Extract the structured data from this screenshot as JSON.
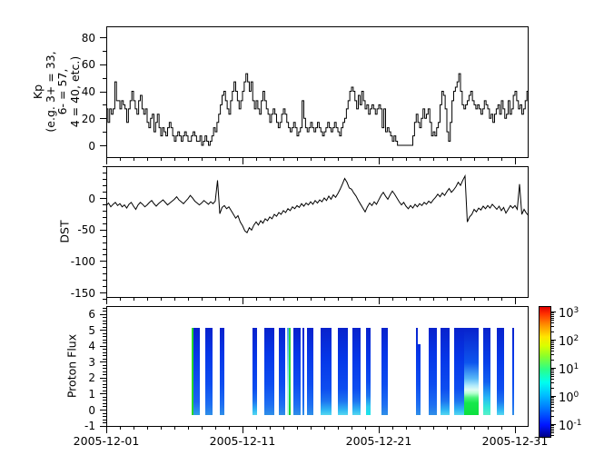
{
  "xaxis": {
    "tick_labels": [
      "2005-12-01",
      "2005-12-11",
      "2005-12-21",
      "2005-12-31"
    ],
    "tick_days": [
      0,
      10,
      20,
      30
    ],
    "minor_tick_every_days": 1,
    "days_total": 31
  },
  "chart_data": [
    {
      "type": "line",
      "name": "kp-index",
      "step": true,
      "ylabel_lines": [
        "Kp",
        "(e.g. 3+ = 33,",
        "6- = 57,",
        "4 = 40, etc.)"
      ],
      "yticks": [
        0,
        20,
        40,
        60,
        80
      ],
      "minor_ytick_step": 10,
      "ylim": [
        -9,
        86
      ],
      "samples_per_day": 8,
      "values": [
        27,
        17,
        27,
        23,
        27,
        47,
        33,
        33,
        27,
        33,
        30,
        27,
        17,
        27,
        33,
        40,
        33,
        27,
        23,
        33,
        37,
        27,
        23,
        27,
        17,
        13,
        20,
        23,
        10,
        17,
        23,
        13,
        7,
        13,
        10,
        7,
        13,
        17,
        13,
        7,
        3,
        7,
        10,
        7,
        3,
        7,
        10,
        7,
        3,
        3,
        7,
        10,
        7,
        3,
        3,
        7,
        0,
        3,
        7,
        3,
        0,
        3,
        7,
        13,
        10,
        17,
        23,
        30,
        37,
        40,
        33,
        27,
        23,
        33,
        40,
        47,
        40,
        33,
        27,
        33,
        40,
        47,
        53,
        47,
        40,
        47,
        33,
        27,
        33,
        27,
        23,
        33,
        40,
        33,
        27,
        23,
        17,
        23,
        27,
        23,
        17,
        13,
        17,
        23,
        27,
        23,
        17,
        13,
        10,
        13,
        17,
        13,
        7,
        10,
        13,
        33,
        20,
        13,
        10,
        13,
        17,
        13,
        10,
        13,
        17,
        13,
        10,
        7,
        10,
        13,
        17,
        13,
        10,
        13,
        17,
        13,
        10,
        7,
        13,
        17,
        20,
        27,
        33,
        40,
        43,
        40,
        33,
        27,
        37,
        30,
        40,
        33,
        27,
        30,
        23,
        27,
        30,
        27,
        23,
        27,
        30,
        27,
        13,
        27,
        10,
        13,
        10,
        7,
        3,
        7,
        3,
        0,
        0,
        0,
        0,
        0,
        0,
        0,
        0,
        0,
        7,
        17,
        23,
        17,
        13,
        20,
        27,
        20,
        23,
        27,
        17,
        7,
        10,
        7,
        13,
        17,
        30,
        40,
        37,
        27,
        10,
        3,
        17,
        33,
        40,
        43,
        47,
        53,
        40,
        30,
        27,
        30,
        33,
        37,
        40,
        33,
        30,
        27,
        30,
        27,
        23,
        27,
        33,
        30,
        27,
        20,
        23,
        17,
        23,
        27,
        30,
        23,
        33,
        27,
        20,
        23,
        33,
        23,
        27,
        37,
        40,
        33,
        27,
        30,
        23,
        27,
        33,
        40
      ]
    },
    {
      "type": "line",
      "name": "dst-index",
      "ylabel": "DST",
      "yticks": [
        0,
        -50,
        -100,
        -150
      ],
      "minor_ytick_step": 10,
      "ylim": [
        -160,
        50
      ],
      "samples_per_day": 6,
      "values": [
        -12,
        -8,
        -14,
        -10,
        -7,
        -12,
        -9,
        -14,
        -11,
        -16,
        -10,
        -7,
        -13,
        -18,
        -11,
        -7,
        -10,
        -14,
        -11,
        -7,
        -4,
        -9,
        -13,
        -9,
        -6,
        -3,
        -7,
        -11,
        -8,
        -5,
        -2,
        2,
        -3,
        -6,
        -9,
        -5,
        -1,
        4,
        0,
        -5,
        -8,
        -11,
        -8,
        -4,
        -7,
        -10,
        -6,
        -9,
        -5,
        28,
        -25,
        -15,
        -12,
        -17,
        -14,
        -20,
        -26,
        -32,
        -28,
        -38,
        -44,
        -52,
        -55,
        -47,
        -51,
        -43,
        -38,
        -43,
        -36,
        -40,
        -33,
        -36,
        -30,
        -33,
        -26,
        -29,
        -23,
        -26,
        -20,
        -23,
        -17,
        -20,
        -14,
        -17,
        -12,
        -15,
        -9,
        -13,
        -8,
        -11,
        -6,
        -10,
        -4,
        -8,
        -3,
        -6,
        0,
        -4,
        3,
        -2,
        5,
        1,
        7,
        14,
        22,
        31,
        25,
        16,
        14,
        8,
        3,
        -4,
        -10,
        -16,
        -22,
        -14,
        -8,
        -12,
        -6,
        -10,
        -3,
        4,
        9,
        3,
        -2,
        5,
        11,
        6,
        0,
        -6,
        -11,
        -7,
        -13,
        -17,
        -12,
        -16,
        -10,
        -14,
        -9,
        -12,
        -7,
        -10,
        -5,
        -8,
        -3,
        1,
        6,
        2,
        8,
        4,
        10,
        15,
        9,
        13,
        18,
        25,
        20,
        28,
        35,
        -38,
        -30,
        -26,
        -18,
        -22,
        -16,
        -19,
        -13,
        -17,
        -12,
        -16,
        -10,
        -14,
        -18,
        -13,
        -20,
        -15,
        -24,
        -18,
        -12,
        -16,
        -12,
        -18,
        22,
        -26,
        -18,
        -24,
        -28
      ]
    },
    {
      "type": "heatmap",
      "name": "proton-flux",
      "ylabel": "Proton Flux",
      "yticks": [
        6,
        5,
        4,
        3,
        2,
        1,
        0,
        -1
      ],
      "ylim": [
        -1.1,
        6.45
      ],
      "band": [
        0,
        5
      ],
      "colorbar": {
        "scale": "log",
        "colormap": "jet",
        "ticks": [
          {
            "base": "10",
            "exp": "3"
          },
          {
            "base": "10",
            "exp": "2"
          },
          {
            "base": "10",
            "exp": "1"
          },
          {
            "base": "10",
            "exp": "0"
          },
          {
            "base": "10",
            "exp": "-1"
          }
        ]
      },
      "stripes": [
        {
          "day_start": 6.27,
          "day_end": 6.87,
          "style": "green_edge"
        },
        {
          "day_start": 7.27,
          "day_end": 7.8,
          "style": "blue"
        },
        {
          "day_start": 8.33,
          "day_end": 8.67,
          "style": "blue"
        },
        {
          "day_start": 10.73,
          "day_end": 11.07,
          "style": "blue_cyan"
        },
        {
          "day_start": 11.6,
          "day_end": 12.33,
          "style": "blue"
        },
        {
          "day_start": 12.67,
          "day_end": 13.13,
          "style": "blue"
        },
        {
          "day_start": 13.27,
          "day_end": 13.4,
          "style": "cyan_light"
        },
        {
          "day_start": 13.4,
          "day_end": 13.53,
          "style": "green_full"
        },
        {
          "day_start": 13.73,
          "day_end": 14.27,
          "style": "blue"
        },
        {
          "day_start": 14.4,
          "day_end": 14.53,
          "style": "blue"
        },
        {
          "day_start": 14.73,
          "day_end": 15.2,
          "style": "blue"
        },
        {
          "day_start": 15.73,
          "day_end": 16.53,
          "style": "blue_cyan"
        },
        {
          "day_start": 17.0,
          "day_end": 17.73,
          "style": "blue_cyan"
        },
        {
          "day_start": 18.07,
          "day_end": 18.67,
          "style": "blue_cyan"
        },
        {
          "day_start": 19.07,
          "day_end": 19.4,
          "style": "blue_cyan_strong"
        },
        {
          "day_start": 20.2,
          "day_end": 20.67,
          "style": "blue"
        },
        {
          "day_start": 22.73,
          "day_end": 23.07,
          "style": "blue_notch"
        },
        {
          "day_start": 23.67,
          "day_end": 24.27,
          "style": "blue"
        },
        {
          "day_start": 24.53,
          "day_end": 25.2,
          "style": "blue_cyan"
        },
        {
          "day_start": 25.53,
          "day_end": 26.27,
          "style": "blue_cyan"
        },
        {
          "day_start": 26.27,
          "day_end": 27.33,
          "style": "green_blob"
        },
        {
          "day_start": 27.67,
          "day_end": 28.2,
          "style": "cyan_bottom"
        },
        {
          "day_start": 28.67,
          "day_end": 29.2,
          "style": "blue_cyan"
        },
        {
          "day_start": 29.8,
          "day_end": 29.93,
          "style": "blue"
        }
      ]
    }
  ]
}
